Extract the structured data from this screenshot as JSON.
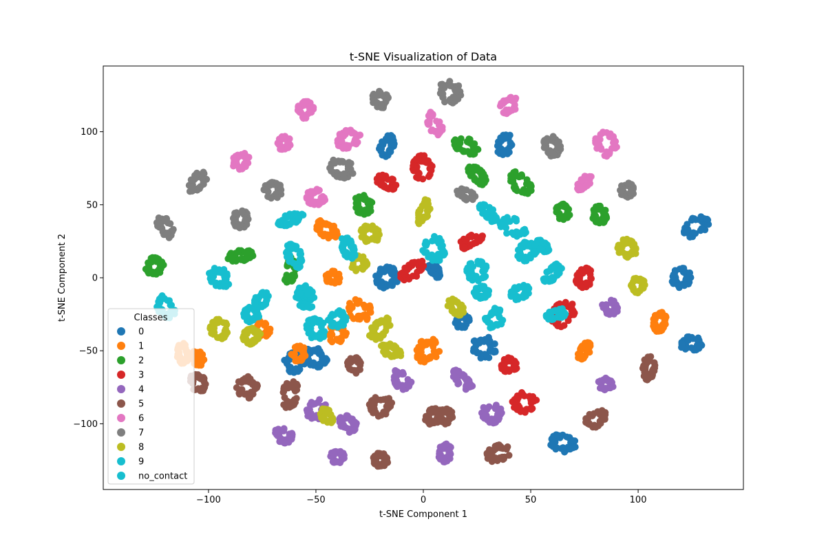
{
  "chart_data": {
    "type": "scatter",
    "title": "t-SNE Visualization of Data",
    "xlabel": "t-SNE Component 1",
    "ylabel": "t-SNE Component 2",
    "xlim": [
      -149,
      149
    ],
    "ylim": [
      -145,
      145
    ],
    "xticks": [
      -100,
      -50,
      0,
      50,
      100
    ],
    "xtick_labels": [
      "−100",
      "−50",
      "0",
      "50",
      "100"
    ],
    "yticks": [
      -100,
      -50,
      0,
      50,
      100
    ],
    "ytick_labels": [
      "−100",
      "−50",
      "0",
      "50",
      "100"
    ],
    "grid": false,
    "legend": {
      "title": "Classes",
      "placement": "lower-left",
      "entries": [
        "0",
        "1",
        "2",
        "3",
        "4",
        "5",
        "6",
        "7",
        "8",
        "9",
        "no_contact"
      ]
    },
    "series": [
      {
        "name": "0",
        "color": "#1f77b4",
        "clusters": [
          [
            -17,
            90
          ],
          [
            38,
            91
          ],
          [
            -17,
            0
          ],
          [
            5,
            5
          ],
          [
            18,
            -30
          ],
          [
            28,
            -48
          ],
          [
            -60,
            -58
          ],
          [
            -50,
            -55
          ],
          [
            127,
            35
          ],
          [
            120,
            0
          ],
          [
            125,
            -45
          ],
          [
            65,
            -113
          ]
        ]
      },
      {
        "name": "1",
        "color": "#ff7f0e",
        "clusters": [
          [
            -45,
            33
          ],
          [
            -42,
            0
          ],
          [
            -30,
            -22
          ],
          [
            -40,
            -38
          ],
          [
            -75,
            -35
          ],
          [
            -58,
            -52
          ],
          [
            -105,
            -55
          ],
          [
            2,
            -50
          ],
          [
            75,
            -50
          ],
          [
            110,
            -30
          ],
          [
            -112,
            -52
          ]
        ]
      },
      {
        "name": "2",
        "color": "#2ca02c",
        "clusters": [
          [
            20,
            90
          ],
          [
            25,
            70
          ],
          [
            -28,
            50
          ],
          [
            -85,
            15
          ],
          [
            -125,
            8
          ],
          [
            -62,
            5
          ],
          [
            45,
            65
          ],
          [
            65,
            45
          ],
          [
            82,
            43
          ]
        ]
      },
      {
        "name": "3",
        "color": "#d62728",
        "clusters": [
          [
            -17,
            65
          ],
          [
            0,
            75
          ],
          [
            -5,
            5
          ],
          [
            22,
            25
          ],
          [
            75,
            0
          ],
          [
            65,
            -25
          ],
          [
            40,
            -60
          ],
          [
            47,
            -85
          ]
        ]
      },
      {
        "name": "4",
        "color": "#9467bd",
        "clusters": [
          [
            -10,
            -70
          ],
          [
            18,
            -70
          ],
          [
            32,
            -93
          ],
          [
            -50,
            -90
          ],
          [
            -35,
            -100
          ],
          [
            -65,
            -108
          ],
          [
            -40,
            -123
          ],
          [
            10,
            -120
          ],
          [
            85,
            -73
          ],
          [
            87,
            -20
          ]
        ]
      },
      {
        "name": "5",
        "color": "#8c564b",
        "clusters": [
          [
            -32,
            -60
          ],
          [
            -20,
            -88
          ],
          [
            5,
            -95
          ],
          [
            -20,
            -125
          ],
          [
            35,
            -120
          ],
          [
            -105,
            -72
          ],
          [
            -82,
            -75
          ],
          [
            -62,
            -80
          ],
          [
            80,
            -97
          ],
          [
            105,
            -62
          ],
          [
            10,
            -95
          ]
        ]
      },
      {
        "name": "6",
        "color": "#e377c2",
        "clusters": [
          [
            -55,
            115
          ],
          [
            -35,
            95
          ],
          [
            -65,
            92
          ],
          [
            -85,
            80
          ],
          [
            -50,
            55
          ],
          [
            5,
            105
          ],
          [
            40,
            118
          ],
          [
            85,
            92
          ],
          [
            75,
            65
          ]
        ]
      },
      {
        "name": "7",
        "color": "#7f7f7f",
        "clusters": [
          [
            -20,
            122
          ],
          [
            12,
            127
          ],
          [
            -38,
            75
          ],
          [
            60,
            90
          ],
          [
            -105,
            65
          ],
          [
            -70,
            60
          ],
          [
            -85,
            40
          ],
          [
            -120,
            35
          ],
          [
            20,
            57
          ],
          [
            95,
            60
          ]
        ]
      },
      {
        "name": "8",
        "color": "#bcbd22",
        "clusters": [
          [
            0,
            45
          ],
          [
            -25,
            30
          ],
          [
            -30,
            10
          ],
          [
            15,
            -20
          ],
          [
            -20,
            -35
          ],
          [
            -15,
            -50
          ],
          [
            95,
            20
          ],
          [
            100,
            -5
          ],
          [
            -95,
            -35
          ],
          [
            -80,
            -40
          ],
          [
            -45,
            -95
          ]
        ]
      },
      {
        "name": "9",
        "color": "#17becf",
        "clusters": [
          [
            -62,
            40
          ],
          [
            30,
            45
          ],
          [
            42,
            35
          ],
          [
            -60,
            15
          ],
          [
            -35,
            20
          ],
          [
            5,
            20
          ],
          [
            -95,
            0
          ],
          [
            -120,
            -20
          ],
          [
            -75,
            -15
          ],
          [
            -55,
            -10
          ],
          [
            -50,
            -35
          ],
          [
            -40,
            -28
          ],
          [
            25,
            5
          ],
          [
            48,
            18
          ],
          [
            60,
            3
          ],
          [
            27,
            -10
          ],
          [
            45,
            -10
          ],
          [
            33,
            -28
          ],
          [
            62,
            -25
          ],
          [
            -80,
            -25
          ],
          [
            -55,
            -15
          ],
          [
            55,
            22
          ]
        ]
      },
      {
        "name": "no_contact",
        "color": "#17becf",
        "clusters": []
      }
    ]
  }
}
